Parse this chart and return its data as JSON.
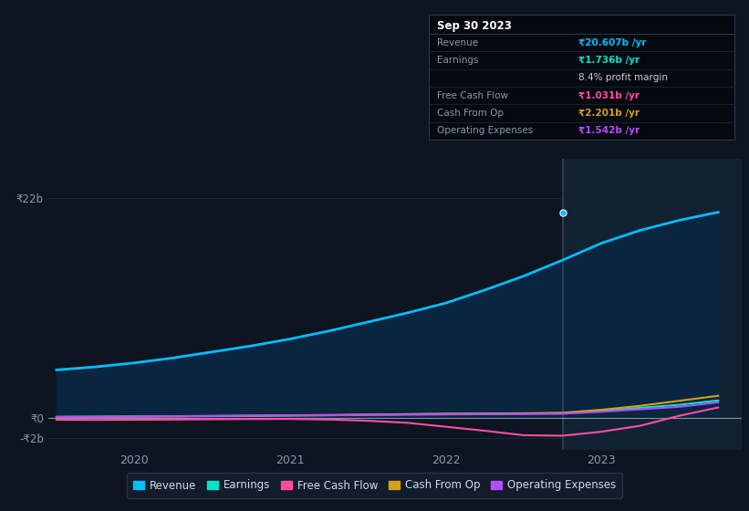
{
  "bg_color": "#0d1520",
  "plot_bg_color": "#0d1520",
  "fill_color": "#0a2540",
  "highlight_bg": "#112233",
  "grid_color": "#1a2e42",
  "title": "Sep 30 2023",
  "ylim": [
    -3.2,
    26.0
  ],
  "yticks": [
    22,
    0,
    -2
  ],
  "ytick_labels": [
    "₹22b",
    "₹0",
    "-₹2b"
  ],
  "xtick_years": [
    2020,
    2021,
    2022,
    2023
  ],
  "vline_x": 2022.75,
  "tooltip": {
    "date": "Sep 30 2023",
    "rows": [
      {
        "label": "Revenue",
        "value": "₹20.607b /yr",
        "value_color": "#00bfff"
      },
      {
        "label": "Earnings",
        "value": "₹1.736b /yr",
        "value_color": "#00e5cc"
      },
      {
        "label": "",
        "value": "8.4% profit margin",
        "value_color": "#cccccc"
      },
      {
        "label": "Free Cash Flow",
        "value": "₹1.031b /yr",
        "value_color": "#ff4da6"
      },
      {
        "label": "Cash From Op",
        "value": "₹2.201b /yr",
        "value_color": "#d4a017"
      },
      {
        "label": "Operating Expenses",
        "value": "₹1.542b /yr",
        "value_color": "#b44dff"
      }
    ]
  },
  "legend": [
    {
      "label": "Revenue",
      "color": "#00bfff"
    },
    {
      "label": "Earnings",
      "color": "#00e5cc"
    },
    {
      "label": "Free Cash Flow",
      "color": "#ff4da6"
    },
    {
      "label": "Cash From Op",
      "color": "#d4a017"
    },
    {
      "label": "Operating Expenses",
      "color": "#b44dff"
    }
  ],
  "series": {
    "x": [
      2019.5,
      2019.75,
      2020.0,
      2020.25,
      2020.5,
      2020.75,
      2021.0,
      2021.25,
      2021.5,
      2021.75,
      2022.0,
      2022.25,
      2022.5,
      2022.75,
      2023.0,
      2023.25,
      2023.5,
      2023.75
    ],
    "revenue": [
      4.8,
      5.1,
      5.5,
      6.0,
      6.6,
      7.2,
      7.9,
      8.7,
      9.6,
      10.5,
      11.5,
      12.8,
      14.2,
      15.8,
      17.5,
      18.8,
      19.8,
      20.607
    ],
    "earnings": [
      0.1,
      0.12,
      0.14,
      0.16,
      0.18,
      0.2,
      0.22,
      0.25,
      0.3,
      0.35,
      0.38,
      0.4,
      0.42,
      0.45,
      0.7,
      1.0,
      1.3,
      1.736
    ],
    "free_cash": [
      -0.2,
      -0.22,
      -0.2,
      -0.18,
      -0.15,
      -0.13,
      -0.12,
      -0.18,
      -0.3,
      -0.5,
      -0.9,
      -1.3,
      -1.75,
      -1.8,
      -1.4,
      -0.8,
      0.2,
      1.031
    ],
    "cash_from_op": [
      0.05,
      0.07,
      0.1,
      0.13,
      0.16,
      0.2,
      0.25,
      0.28,
      0.32,
      0.36,
      0.4,
      0.42,
      0.45,
      0.5,
      0.8,
      1.2,
      1.7,
      2.201
    ],
    "op_expenses": [
      0.08,
      0.1,
      0.12,
      0.15,
      0.18,
      0.2,
      0.22,
      0.25,
      0.28,
      0.3,
      0.33,
      0.36,
      0.38,
      0.4,
      0.6,
      0.85,
      1.1,
      1.542
    ]
  }
}
